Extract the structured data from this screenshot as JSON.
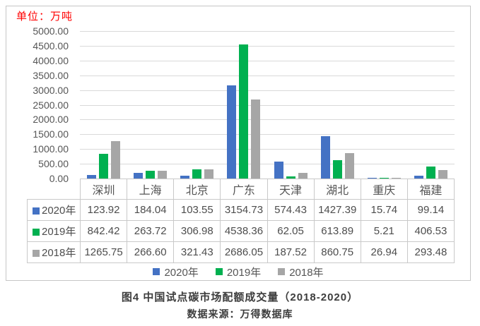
{
  "figure": {
    "unit_label": "单位：万吨",
    "caption": "图4 中国试点碳市场配额成交量（2018-2020）",
    "source": "数据来源：万得数据库"
  },
  "chart_data": {
    "type": "bar",
    "title": "图4 中国试点碳市场配额成交量（2018-2020）",
    "unit_label": "单位：万吨",
    "source_note": "数据来源：万得数据库",
    "categories": [
      "深圳",
      "上海",
      "北京",
      "广东",
      "天津",
      "湖北",
      "重庆",
      "福建"
    ],
    "series": [
      {
        "name": "2020年",
        "color": "#4472C4",
        "values": [
          123.92,
          184.04,
          103.55,
          3154.73,
          574.43,
          1427.39,
          15.74,
          99.14
        ]
      },
      {
        "name": "2019年",
        "color": "#00B050",
        "values": [
          842.42,
          263.72,
          306.98,
          4538.36,
          62.05,
          613.89,
          5.21,
          406.53
        ]
      },
      {
        "name": "2018年",
        "color": "#A6A6A6",
        "values": [
          1265.75,
          266.6,
          321.43,
          2686.05,
          187.52,
          860.75,
          26.94,
          293.48
        ]
      }
    ],
    "ylim": [
      0,
      5000
    ],
    "ytick_step": 500,
    "ytick_labels": [
      "5000.00",
      "4500.00",
      "4000.00",
      "3500.00",
      "3000.00",
      "2500.00",
      "2000.00",
      "1500.00",
      "1000.00",
      "500.00",
      "0.00"
    ],
    "grid": true,
    "legend_position": "bottom",
    "has_data_table": true,
    "value_decimals": 2
  }
}
